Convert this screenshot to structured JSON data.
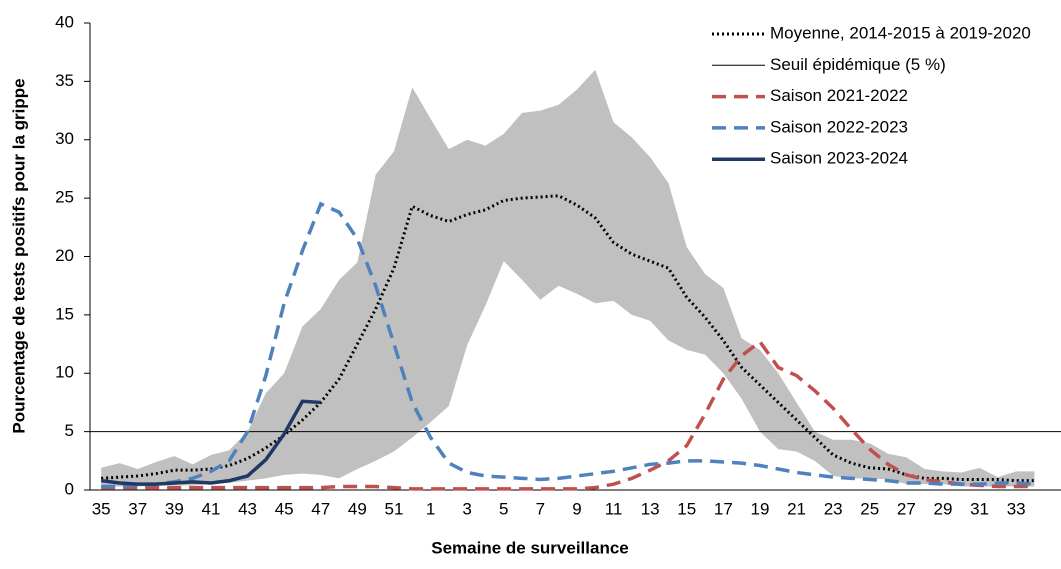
{
  "chart_data": {
    "type": "line",
    "xlabel": "Semaine de surveillance",
    "ylabel": "Pourcentage de tests positifs pour la grippe",
    "categories": [
      35,
      null,
      37,
      null,
      39,
      null,
      41,
      null,
      43,
      null,
      45,
      null,
      47,
      null,
      49,
      null,
      51,
      null,
      1,
      null,
      3,
      null,
      5,
      null,
      7,
      null,
      9,
      null,
      11,
      null,
      13,
      null,
      15,
      null,
      17,
      null,
      19,
      null,
      21,
      null,
      23,
      null,
      25,
      null,
      27,
      null,
      29,
      null,
      31,
      null,
      33,
      null
    ],
    "ylim": [
      0,
      40
    ],
    "yticks": [
      0,
      5,
      10,
      15,
      20,
      25,
      30,
      35,
      40
    ],
    "range": {
      "color": "#c0c0c0",
      "high": [
        1.9,
        2.3,
        1.8,
        2.4,
        2.9,
        2.2,
        3.0,
        3.4,
        5.0,
        8.3,
        10.0,
        14.0,
        15.5,
        18.0,
        19.5,
        27.0,
        29.0,
        34.5,
        31.8,
        29.2,
        30.0,
        29.5,
        30.5,
        32.3,
        32.5,
        33.0,
        34.3,
        36.0,
        31.5,
        30.2,
        28.5,
        26.3,
        20.8,
        18.5,
        17.3,
        13.0,
        12.0,
        10.0,
        7.5,
        5.0,
        4.3,
        4.3,
        4.0,
        3.1,
        2.8,
        1.8,
        1.6,
        1.5,
        1.9,
        1.1,
        1.6,
        1.6
      ],
      "low": [
        0.3,
        0.3,
        0.3,
        0.4,
        0.4,
        0.4,
        0.5,
        0.6,
        0.8,
        1.0,
        1.3,
        1.4,
        1.3,
        1.0,
        1.8,
        2.5,
        3.3,
        4.5,
        5.8,
        7.2,
        12.4,
        15.8,
        19.6,
        18.0,
        16.3,
        17.5,
        16.8,
        16.0,
        16.2,
        15.0,
        14.5,
        12.8,
        12.0,
        11.6,
        10.0,
        7.8,
        5.0,
        3.5,
        3.3,
        2.5,
        1.2,
        1.0,
        1.0,
        0.9,
        0.5,
        0.5,
        0.5,
        0.3,
        0.3,
        0.3,
        0.3,
        0.3
      ]
    },
    "threshold": {
      "name": "Seuil épidémique (5 %)",
      "value": 5,
      "color": "#000000"
    },
    "series": [
      {
        "name": "Moyenne, 2014-2015 à 2019-2020",
        "color": "#000000",
        "style": "dotted",
        "values": [
          1.0,
          1.1,
          1.2,
          1.4,
          1.7,
          1.7,
          1.8,
          2.1,
          2.7,
          3.6,
          4.7,
          6.0,
          7.5,
          9.5,
          12.5,
          15.5,
          19.0,
          24.3,
          23.5,
          23.0,
          23.6,
          24.0,
          24.8,
          25.0,
          25.1,
          25.2,
          24.4,
          23.3,
          21.2,
          20.2,
          19.6,
          19.0,
          16.5,
          14.8,
          12.8,
          10.5,
          9.0,
          7.5,
          6.0,
          4.5,
          3.0,
          2.3,
          1.9,
          1.8,
          1.3,
          1.0,
          1.0,
          0.9,
          0.9,
          0.9,
          0.8,
          0.8
        ]
      },
      {
        "name": "Saison 2021-2022",
        "color": "#c0504d",
        "style": "dashed",
        "values": [
          0.2,
          0.2,
          0.2,
          0.2,
          0.2,
          0.2,
          0.2,
          0.2,
          0.2,
          0.2,
          0.2,
          0.2,
          0.2,
          0.3,
          0.3,
          0.3,
          0.2,
          0.1,
          0.1,
          0.1,
          0.1,
          0.1,
          0.1,
          0.1,
          0.1,
          0.1,
          0.1,
          0.2,
          0.5,
          1.0,
          1.7,
          2.5,
          3.8,
          6.5,
          9.5,
          11.5,
          12.7,
          10.5,
          9.8,
          8.5,
          7.0,
          5.2,
          3.5,
          2.2,
          1.3,
          0.9,
          0.7,
          0.5,
          0.4,
          0.3,
          0.3,
          0.3
        ]
      },
      {
        "name": "Saison 2022-2023",
        "color": "#4f81bd",
        "style": "dashed",
        "values": [
          0.3,
          0.3,
          0.4,
          0.5,
          0.7,
          1.0,
          1.6,
          2.5,
          5.0,
          9.8,
          16.0,
          20.5,
          24.5,
          23.8,
          21.5,
          17.5,
          12.5,
          7.5,
          4.5,
          2.3,
          1.5,
          1.2,
          1.1,
          1.0,
          0.9,
          1.0,
          1.2,
          1.4,
          1.6,
          1.9,
          2.2,
          2.3,
          2.5,
          2.5,
          2.4,
          2.3,
          2.1,
          1.8,
          1.5,
          1.3,
          1.1,
          1.0,
          0.9,
          0.8,
          0.6,
          0.6,
          0.5,
          0.5,
          0.5,
          0.6,
          0.6,
          0.5
        ]
      },
      {
        "name": "Saison 2023-2024",
        "color": "#1f3864",
        "style": "solid",
        "values": [
          0.8,
          0.6,
          0.5,
          0.5,
          0.6,
          0.7,
          0.6,
          0.8,
          1.2,
          2.6,
          4.8,
          7.6,
          7.5,
          null,
          null,
          null,
          null,
          null,
          null,
          null,
          null,
          null,
          null,
          null,
          null,
          null,
          null,
          null,
          null,
          null,
          null,
          null,
          null,
          null,
          null,
          null,
          null,
          null,
          null,
          null,
          null,
          null,
          null,
          null,
          null,
          null,
          null,
          null,
          null,
          null,
          null,
          null
        ]
      }
    ]
  }
}
